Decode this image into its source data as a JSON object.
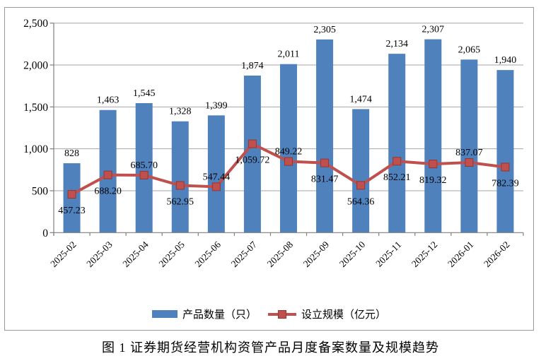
{
  "figure": {
    "caption": "图 1  证券期货经营机构资管产品月度备案数量及规模趋势",
    "background": "#ffffff",
    "frame_border_color": "#9a9a9a"
  },
  "legend": {
    "bar_label": "产品数量（只）",
    "line_label": "设立规模（亿元）"
  },
  "chart_data": {
    "type": "bar",
    "combo": "bar+line",
    "title": "",
    "xlabel": "",
    "ylabel": "",
    "categories": [
      "2025-02",
      "2025-03",
      "2025-04",
      "2025-05",
      "2025-06",
      "2025-07",
      "2025-08",
      "2025-09",
      "2025-10",
      "2025-11",
      "2025-12",
      "2026-01",
      "2026-02"
    ],
    "series": [
      {
        "name": "产品数量（只）",
        "type": "bar",
        "color": "#4f81bd",
        "values": [
          828,
          1463,
          1545,
          1328,
          1399,
          1874,
          2011,
          2305,
          1474,
          2134,
          2307,
          2065,
          1940
        ],
        "labels": [
          "828",
          "1,463",
          "1,545",
          "1,328",
          "1,399",
          "1,874",
          "2,011",
          "2,305",
          "1,474",
          "2,134",
          "2,307",
          "2,065",
          "1,940"
        ]
      },
      {
        "name": "设立规模（亿元）",
        "type": "line",
        "color": "#c0504d",
        "marker": "square",
        "marker_edge_color": "#943634",
        "values": [
          457.23,
          688.2,
          685.7,
          562.95,
          547.44,
          1059.72,
          849.22,
          831.47,
          564.36,
          852.21,
          819.32,
          837.07,
          782.39
        ],
        "labels": [
          "457.23",
          "688.20",
          "685.70",
          "562.95",
          "547.44",
          "1,059.72",
          "849.22",
          "831.47",
          "564.36",
          "852.21",
          "819.32",
          "837.07",
          "782.39"
        ],
        "label_positions": [
          "below",
          "below",
          "above",
          "below",
          "above",
          "below",
          "above",
          "below",
          "below",
          "below",
          "below",
          "above",
          "below"
        ]
      }
    ],
    "ylim": [
      0,
      2500
    ],
    "ytick_values": [
      0,
      500,
      1000,
      1500,
      2000,
      2500
    ],
    "ytick_labels": [
      "0",
      "500",
      "1,000",
      "1,500",
      "2,000",
      "2,500"
    ],
    "grid": true,
    "gridline_color": "#a6a6a6",
    "axis_color": "#7f7f7f",
    "text_color": "#000000",
    "legend_position": "bottom-inside",
    "x_tick_label_rotation": -45
  }
}
